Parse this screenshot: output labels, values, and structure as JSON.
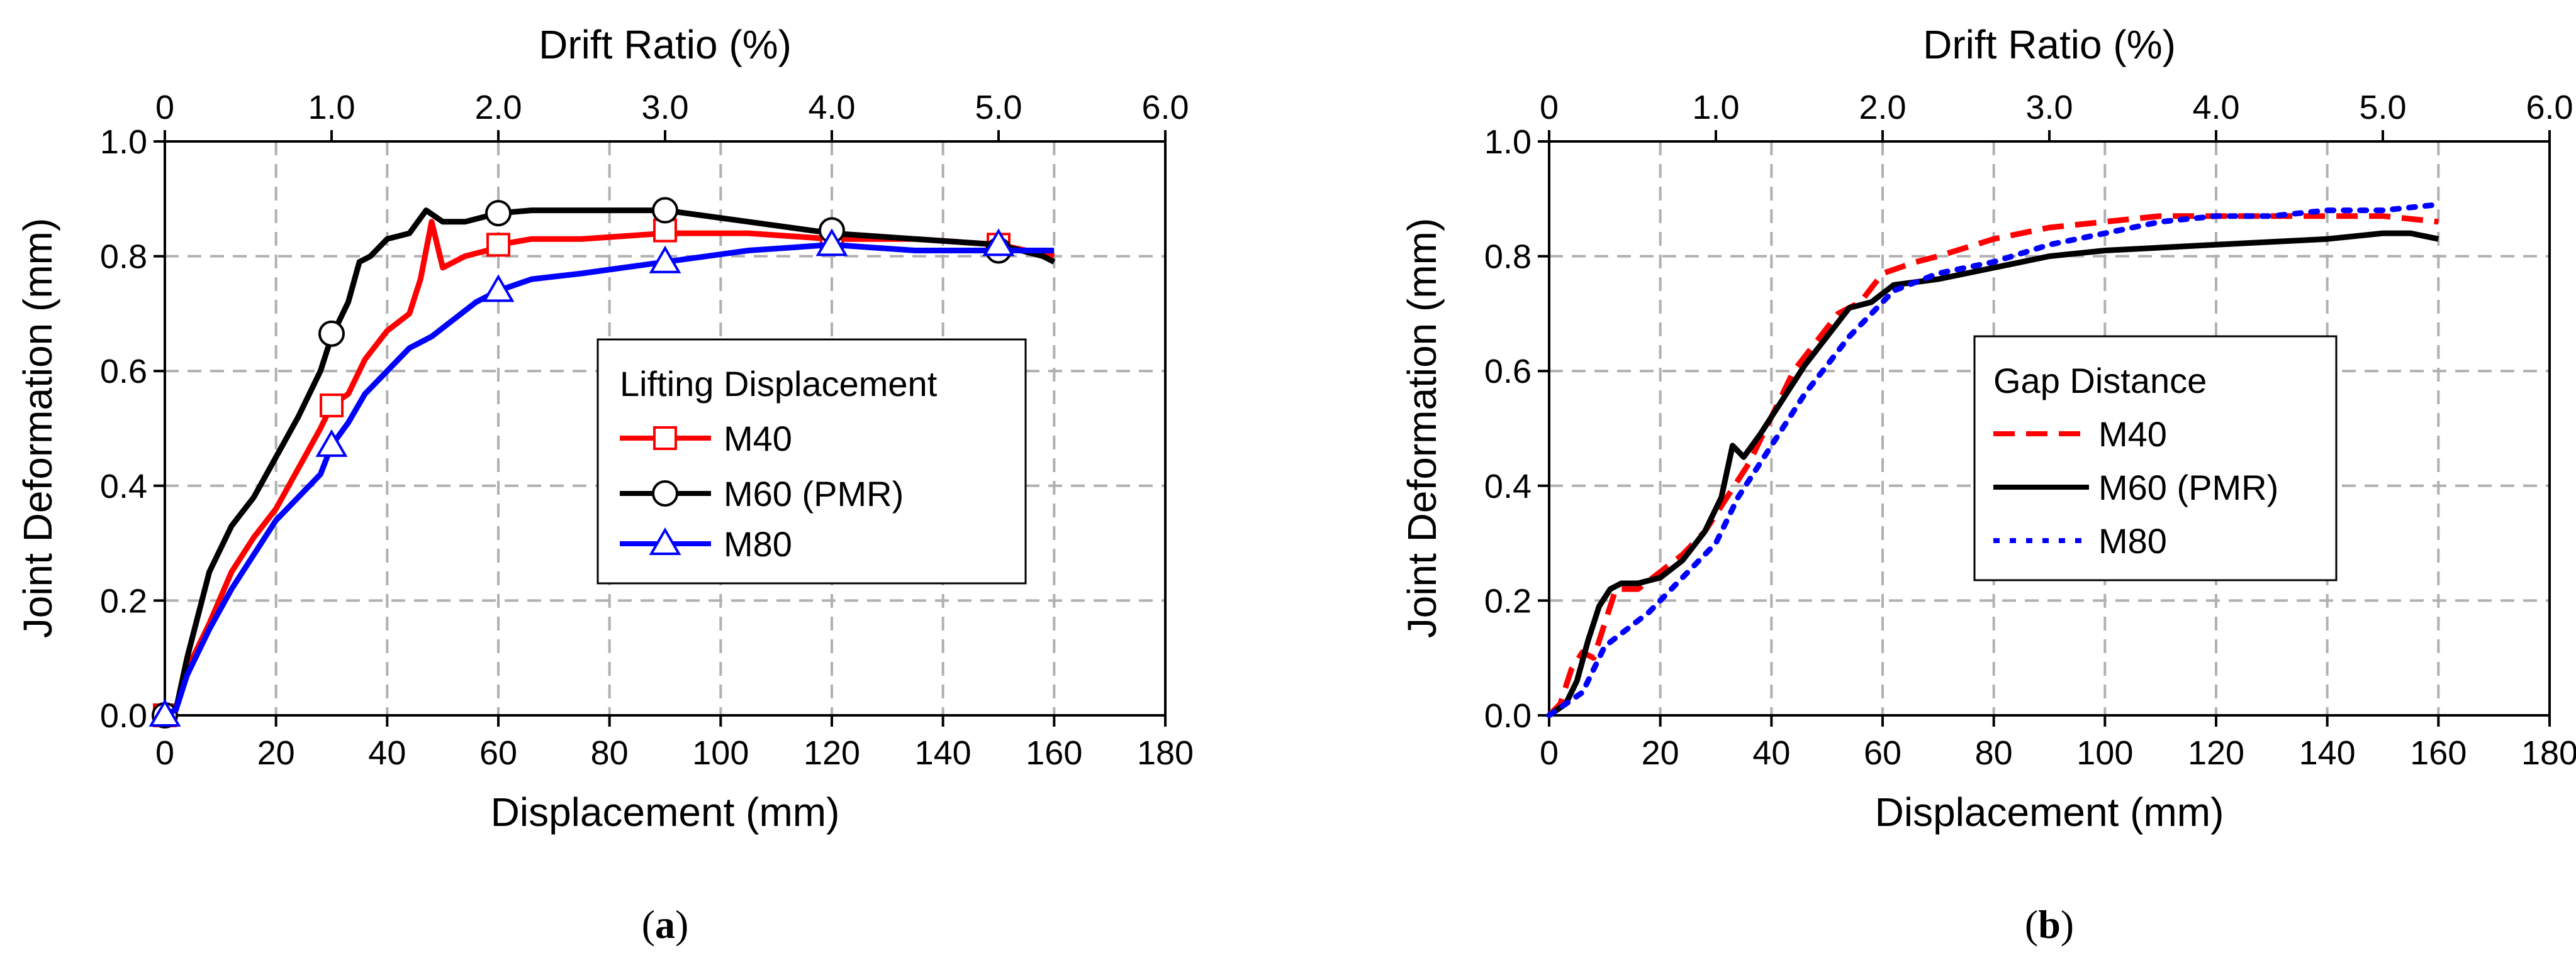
{
  "chart_data": [
    {
      "type": "line",
      "caption": {
        "open": "(",
        "letter": "a",
        "close": ")"
      },
      "xlabel": "Displacement (mm)",
      "ylabel": "Joint Deformation (mm)",
      "x2label": "Drift Ratio (%)",
      "xlim": [
        0,
        180
      ],
      "ylim": [
        0,
        1.0
      ],
      "x2lim": [
        0,
        6.0
      ],
      "xticks": [
        0,
        20,
        40,
        60,
        80,
        100,
        120,
        140,
        160,
        180
      ],
      "yticks": [
        0.0,
        0.2,
        0.4,
        0.6,
        0.8,
        1.0
      ],
      "x2ticks": [
        0,
        1.0,
        2.0,
        3.0,
        4.0,
        5.0,
        6.0
      ],
      "xtick_labels": [
        "0",
        "20",
        "40",
        "60",
        "80",
        "100",
        "120",
        "140",
        "160",
        "180"
      ],
      "ytick_labels": [
        "0.0",
        "0.2",
        "0.4",
        "0.6",
        "0.8",
        "1.0"
      ],
      "x2tick_labels": [
        "0",
        "1.0",
        "2.0",
        "3.0",
        "4.0",
        "5.0",
        "6.0"
      ],
      "grid": true,
      "legend": {
        "title": "Lifting Displacement",
        "placement": "center-right"
      },
      "series": [
        {
          "name": "M40",
          "color": "#ff0000",
          "marker": "square",
          "style": "solid",
          "x": [
            0,
            2,
            4,
            8,
            12,
            16,
            20,
            24,
            28,
            30,
            33,
            36,
            40,
            44,
            46,
            48,
            50,
            54,
            58,
            60,
            66,
            75,
            90,
            105,
            120,
            135,
            150,
            160
          ],
          "y": [
            0,
            0.01,
            0.08,
            0.16,
            0.25,
            0.31,
            0.36,
            0.43,
            0.5,
            0.54,
            0.56,
            0.62,
            0.67,
            0.7,
            0.76,
            0.86,
            0.78,
            0.8,
            0.81,
            0.82,
            0.83,
            0.83,
            0.84,
            0.84,
            0.83,
            0.83,
            0.82,
            0.8
          ],
          "markers_x": [
            0,
            30,
            60,
            90,
            120,
            150
          ],
          "markers_y": [
            0.0,
            0.54,
            0.82,
            0.845,
            0.83,
            0.82
          ]
        },
        {
          "name": "M60 (PMR)",
          "color": "#000000",
          "marker": "circle",
          "style": "solid",
          "x": [
            0,
            2,
            4,
            8,
            12,
            16,
            20,
            24,
            28,
            30,
            33,
            35,
            37,
            40,
            44,
            47,
            50,
            54,
            58,
            60,
            66,
            75,
            90,
            105,
            120,
            135,
            150,
            158,
            160
          ],
          "y": [
            0,
            0.01,
            0.1,
            0.25,
            0.33,
            0.38,
            0.45,
            0.52,
            0.6,
            0.66,
            0.72,
            0.79,
            0.8,
            0.83,
            0.84,
            0.88,
            0.86,
            0.86,
            0.87,
            0.875,
            0.88,
            0.88,
            0.88,
            0.86,
            0.84,
            0.83,
            0.82,
            0.8,
            0.79
          ],
          "markers_x": [
            0,
            30,
            60,
            90,
            120,
            150
          ],
          "markers_y": [
            0.0,
            0.665,
            0.875,
            0.88,
            0.845,
            0.81
          ]
        },
        {
          "name": "M80",
          "color": "#0000ff",
          "marker": "triangle",
          "style": "solid",
          "x": [
            0,
            2,
            4,
            8,
            12,
            16,
            20,
            24,
            28,
            30,
            33,
            36,
            40,
            44,
            48,
            52,
            56,
            60,
            66,
            75,
            90,
            105,
            120,
            135,
            150,
            160
          ],
          "y": [
            0,
            0.01,
            0.07,
            0.15,
            0.22,
            0.28,
            0.34,
            0.38,
            0.42,
            0.47,
            0.51,
            0.56,
            0.6,
            0.64,
            0.66,
            0.69,
            0.72,
            0.74,
            0.76,
            0.77,
            0.79,
            0.81,
            0.82,
            0.81,
            0.81,
            0.81
          ],
          "markers_x": [
            0,
            30,
            60,
            90,
            120,
            150
          ],
          "markers_y": [
            0.0,
            0.47,
            0.74,
            0.79,
            0.82,
            0.82
          ]
        }
      ]
    },
    {
      "type": "line",
      "caption": {
        "open": "(",
        "letter": "b",
        "close": ")"
      },
      "xlabel": "Displacement (mm)",
      "ylabel": "Joint Deformation (mm)",
      "x2label": "Drift Ratio (%)",
      "xlim": [
        0,
        180
      ],
      "ylim": [
        0,
        1.0
      ],
      "x2lim": [
        0,
        6.0
      ],
      "xticks": [
        0,
        20,
        40,
        60,
        80,
        100,
        120,
        140,
        160,
        180
      ],
      "yticks": [
        0.0,
        0.2,
        0.4,
        0.6,
        0.8,
        1.0
      ],
      "x2ticks": [
        0,
        1.0,
        2.0,
        3.0,
        4.0,
        5.0,
        6.0
      ],
      "xtick_labels": [
        "0",
        "20",
        "40",
        "60",
        "80",
        "100",
        "120",
        "140",
        "160",
        "180"
      ],
      "ytick_labels": [
        "0.0",
        "0.2",
        "0.4",
        "0.6",
        "0.8",
        "1.0"
      ],
      "x2tick_labels": [
        "0",
        "1.0",
        "2.0",
        "3.0",
        "4.0",
        "5.0",
        "6.0"
      ],
      "grid": true,
      "legend": {
        "title": "Gap Distance",
        "placement": "center-right"
      },
      "series": [
        {
          "name": "M40",
          "color": "#ff0000",
          "marker": "none",
          "style": "dashed",
          "x": [
            0,
            2,
            4,
            6,
            8,
            10,
            12,
            16,
            20,
            24,
            28,
            32,
            36,
            40,
            44,
            48,
            52,
            56,
            60,
            66,
            70,
            80,
            90,
            100,
            110,
            120,
            130,
            140,
            150,
            160
          ],
          "y": [
            0,
            0.02,
            0.08,
            0.11,
            0.1,
            0.16,
            0.22,
            0.22,
            0.25,
            0.28,
            0.32,
            0.38,
            0.44,
            0.52,
            0.6,
            0.65,
            0.7,
            0.72,
            0.77,
            0.79,
            0.8,
            0.83,
            0.85,
            0.86,
            0.87,
            0.87,
            0.87,
            0.87,
            0.87,
            0.86
          ],
          "markers_x": [],
          "markers_y": []
        },
        {
          "name": "M60 (PMR)",
          "color": "#000000",
          "marker": "none",
          "style": "solid",
          "x": [
            0,
            3,
            5,
            7,
            9,
            11,
            13,
            16,
            20,
            24,
            28,
            31,
            33,
            35,
            38,
            42,
            46,
            50,
            54,
            58,
            62,
            70,
            80,
            90,
            100,
            120,
            140,
            150,
            155,
            160
          ],
          "y": [
            0,
            0.02,
            0.06,
            0.13,
            0.19,
            0.22,
            0.23,
            0.23,
            0.24,
            0.27,
            0.32,
            0.38,
            0.47,
            0.45,
            0.49,
            0.55,
            0.61,
            0.66,
            0.71,
            0.72,
            0.75,
            0.76,
            0.78,
            0.8,
            0.81,
            0.82,
            0.83,
            0.84,
            0.84,
            0.83
          ],
          "markers_x": [],
          "markers_y": []
        },
        {
          "name": "M80",
          "color": "#0000ff",
          "marker": "none",
          "style": "dotted",
          "x": [
            0,
            3,
            6,
            8,
            10,
            14,
            18,
            22,
            26,
            30,
            34,
            38,
            42,
            46,
            50,
            54,
            58,
            62,
            70,
            80,
            90,
            100,
            110,
            120,
            130,
            140,
            150,
            160
          ],
          "y": [
            0,
            0.02,
            0.04,
            0.08,
            0.12,
            0.15,
            0.18,
            0.22,
            0.26,
            0.3,
            0.38,
            0.44,
            0.5,
            0.56,
            0.61,
            0.66,
            0.7,
            0.74,
            0.77,
            0.79,
            0.82,
            0.84,
            0.86,
            0.87,
            0.87,
            0.88,
            0.88,
            0.89
          ],
          "markers_x": [],
          "markers_y": []
        }
      ]
    }
  ]
}
